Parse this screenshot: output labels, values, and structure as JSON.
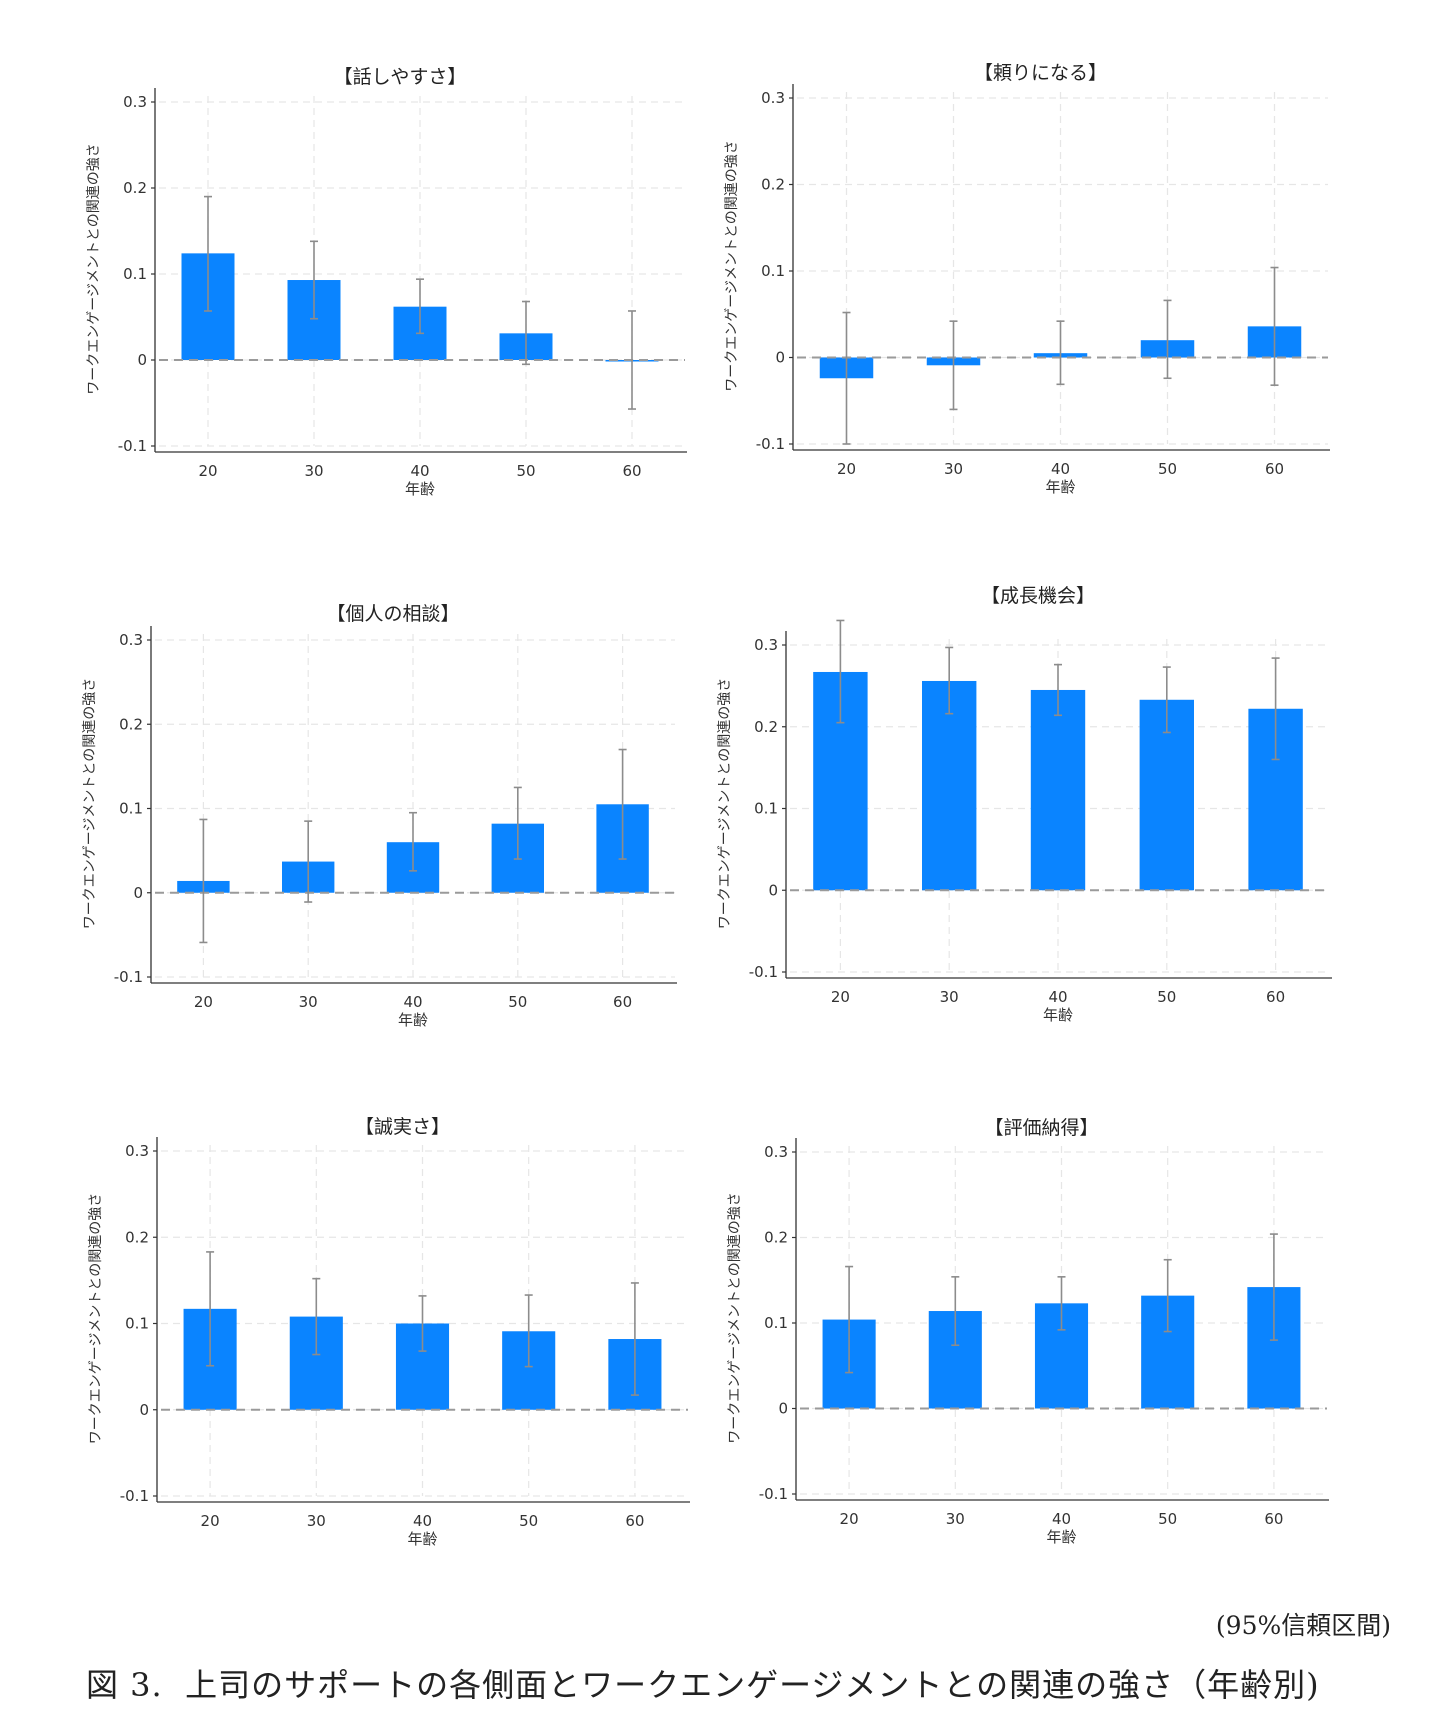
{
  "chart_data": [
    {
      "type": "bar",
      "title": "【話しやすさ】",
      "xlabel": "年齢",
      "ylabel": "ワークエンゲージメントとの関連の強さ",
      "categories": [
        "20",
        "30",
        "40",
        "50",
        "60"
      ],
      "values": [
        0.124,
        0.093,
        0.062,
        0.031,
        -0.001
      ],
      "ci_low": [
        0.057,
        0.048,
        0.031,
        -0.005,
        -0.057
      ],
      "ci_high": [
        0.19,
        0.138,
        0.094,
        0.068,
        0.057
      ],
      "yticks": [
        "0.3",
        "0.2",
        "0.1",
        "0",
        "-0.1"
      ],
      "ylim": [
        -0.1,
        0.3
      ],
      "grid": true,
      "bar_color": "#0a84ff"
    },
    {
      "type": "bar",
      "title": "【頼りになる】",
      "xlabel": "年齢",
      "ylabel": "ワークエンゲージメントとの関連の強さ",
      "categories": [
        "20",
        "30",
        "40",
        "50",
        "60"
      ],
      "values": [
        -0.024,
        -0.009,
        0.005,
        0.02,
        0.036
      ],
      "ci_low": [
        -0.1,
        -0.06,
        -0.031,
        -0.024,
        -0.032
      ],
      "ci_high": [
        0.052,
        0.042,
        0.042,
        0.066,
        0.104
      ],
      "yticks": [
        "0.3",
        "0.2",
        "0.1",
        "0",
        "-0.1"
      ],
      "ylim": [
        -0.1,
        0.3
      ],
      "grid": true,
      "bar_color": "#0a84ff"
    },
    {
      "type": "bar",
      "title": "【個人の相談】",
      "xlabel": "年齢",
      "ylabel": "ワークエンゲージメントとの関連の強さ",
      "categories": [
        "20",
        "30",
        "40",
        "50",
        "60"
      ],
      "values": [
        0.014,
        0.037,
        0.06,
        0.082,
        0.105
      ],
      "ci_low": [
        -0.059,
        -0.011,
        0.026,
        0.04,
        0.04
      ],
      "ci_high": [
        0.087,
        0.085,
        0.095,
        0.125,
        0.17
      ],
      "yticks": [
        "0.3",
        "0.2",
        "0.1",
        "0",
        "-0.1"
      ],
      "ylim": [
        -0.1,
        0.3
      ],
      "grid": true,
      "bar_color": "#0a84ff"
    },
    {
      "type": "bar",
      "title": "【成長機会】",
      "xlabel": "年齢",
      "ylabel": "ワークエンゲージメントとの関連の強さ",
      "categories": [
        "20",
        "30",
        "40",
        "50",
        "60"
      ],
      "values": [
        0.267,
        0.256,
        0.245,
        0.233,
        0.222
      ],
      "ci_low": [
        0.205,
        0.216,
        0.214,
        0.193,
        0.16
      ],
      "ci_high": [
        0.33,
        0.297,
        0.276,
        0.273,
        0.284
      ],
      "yticks": [
        "0.3",
        "0.2",
        "0.1",
        "0",
        "-0.1"
      ],
      "ylim": [
        -0.1,
        0.3
      ],
      "grid": true,
      "bar_color": "#0a84ff"
    },
    {
      "type": "bar",
      "title": "【誠実さ】",
      "xlabel": "年齢",
      "ylabel": "ワークエンゲージメントとの関連の強さ",
      "categories": [
        "20",
        "30",
        "40",
        "50",
        "60"
      ],
      "values": [
        0.117,
        0.108,
        0.1,
        0.091,
        0.082
      ],
      "ci_low": [
        0.051,
        0.064,
        0.068,
        0.05,
        0.017
      ],
      "ci_high": [
        0.183,
        0.152,
        0.132,
        0.133,
        0.147
      ],
      "yticks": [
        "0.3",
        "0.2",
        "0.1",
        "0",
        "-0.1"
      ],
      "ylim": [
        -0.1,
        0.3
      ],
      "grid": true,
      "bar_color": "#0a84ff"
    },
    {
      "type": "bar",
      "title": "【評価納得】",
      "xlabel": "年齢",
      "ylabel": "ワークエンゲージメントとの関連の強さ",
      "categories": [
        "20",
        "30",
        "40",
        "50",
        "60"
      ],
      "values": [
        0.104,
        0.114,
        0.123,
        0.132,
        0.142
      ],
      "ci_low": [
        0.042,
        0.074,
        0.092,
        0.09,
        0.08
      ],
      "ci_high": [
        0.166,
        0.154,
        0.154,
        0.174,
        0.204
      ],
      "yticks": [
        "0.3",
        "0.2",
        "0.1",
        "0",
        "-0.1"
      ],
      "ylim": [
        -0.1,
        0.3
      ],
      "grid": true,
      "bar_color": "#0a84ff"
    }
  ],
  "note": "(95%信頼区間)",
  "caption": {
    "label": "図 3.",
    "text": "上司のサポートの各側面とワークエンゲージメントとの関連の強さ（年齢別)"
  }
}
